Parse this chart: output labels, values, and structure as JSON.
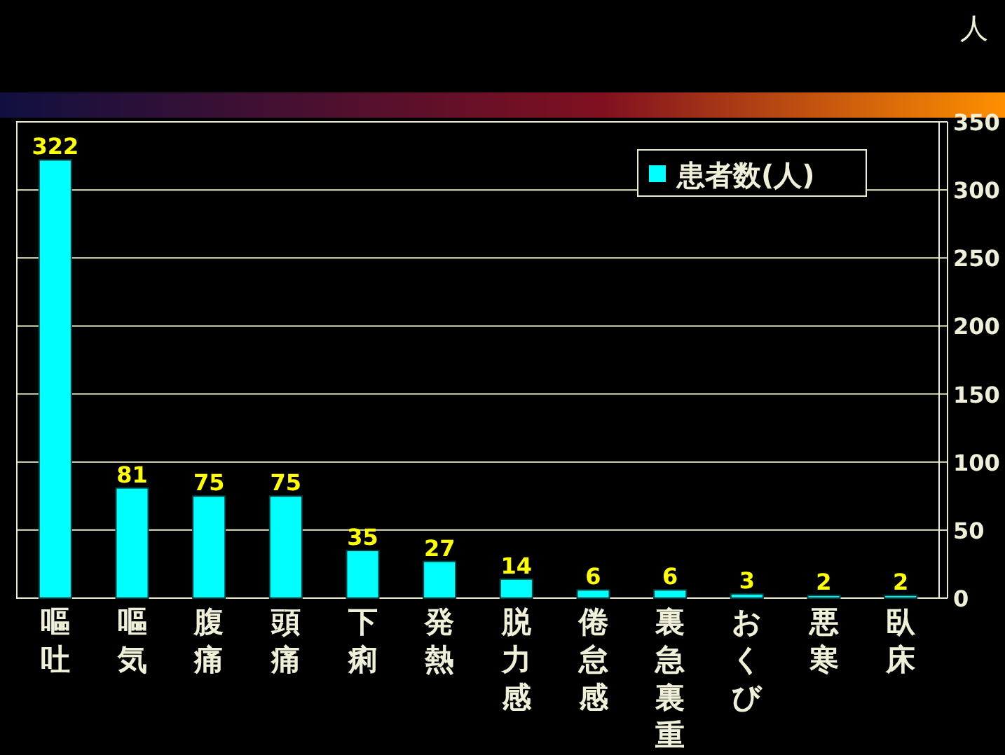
{
  "chart_data": {
    "type": "bar",
    "ylabel": "人",
    "categories": [
      "嘔吐",
      "嘔気",
      "腹痛",
      "頭痛",
      "下痢",
      "発熱",
      "脱力感",
      "倦怠感",
      "裏急裏重",
      "おくび",
      "悪寒",
      "臥床"
    ],
    "series": [
      {
        "name": "患者数(人)",
        "color": "#00ffff",
        "values": [
          322,
          81,
          75,
          75,
          35,
          27,
          14,
          6,
          6,
          3,
          2,
          2
        ]
      }
    ],
    "ylim": [
      0,
      350
    ],
    "yticks": [
      0,
      50,
      100,
      150,
      200,
      250,
      300,
      350
    ],
    "grid": "y",
    "legend": "top right",
    "data_labels": true
  }
}
